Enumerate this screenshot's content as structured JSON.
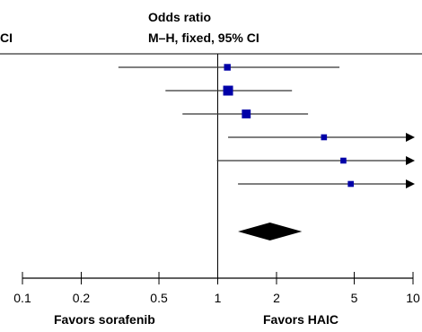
{
  "chart_data": {
    "type": "forest",
    "header": {
      "left_fragment": "CI",
      "title": "Odds ratio",
      "subtitle": "M–H, fixed, 95% CI"
    },
    "scale": "log",
    "xlim": [
      0.1,
      10
    ],
    "reference_line": 1,
    "tick_labels": [
      "0.1",
      "0.2",
      "0.5",
      "1",
      "2",
      "5",
      "10"
    ],
    "tick_values": [
      0.1,
      0.2,
      0.5,
      1,
      2,
      5,
      10
    ],
    "side_labels": {
      "left": "Favors sorafenib",
      "right": "Favors HAIC"
    },
    "studies": [
      {
        "or": 1.12,
        "lower": 0.31,
        "upper": 4.2,
        "marker_weight": 0.55,
        "upper_truncated": false
      },
      {
        "or": 1.13,
        "lower": 0.54,
        "upper": 2.4,
        "marker_weight": 1.0,
        "upper_truncated": false
      },
      {
        "or": 1.4,
        "lower": 0.66,
        "upper": 2.9,
        "marker_weight": 0.85,
        "upper_truncated": false
      },
      {
        "or": 3.5,
        "lower": 1.13,
        "upper": 10,
        "marker_weight": 0.45,
        "upper_truncated": true
      },
      {
        "or": 4.4,
        "lower": 0.99,
        "upper": 10,
        "marker_weight": 0.45,
        "upper_truncated": true
      },
      {
        "or": 4.8,
        "lower": 1.27,
        "upper": 10,
        "marker_weight": 0.45,
        "upper_truncated": true
      }
    ],
    "pooled": {
      "or": 1.85,
      "lower": 1.27,
      "upper": 2.7
    },
    "colors": {
      "marker": "#0000a8",
      "pooled": "#000000",
      "lines": "#000000",
      "ci_line": "#333333"
    }
  }
}
